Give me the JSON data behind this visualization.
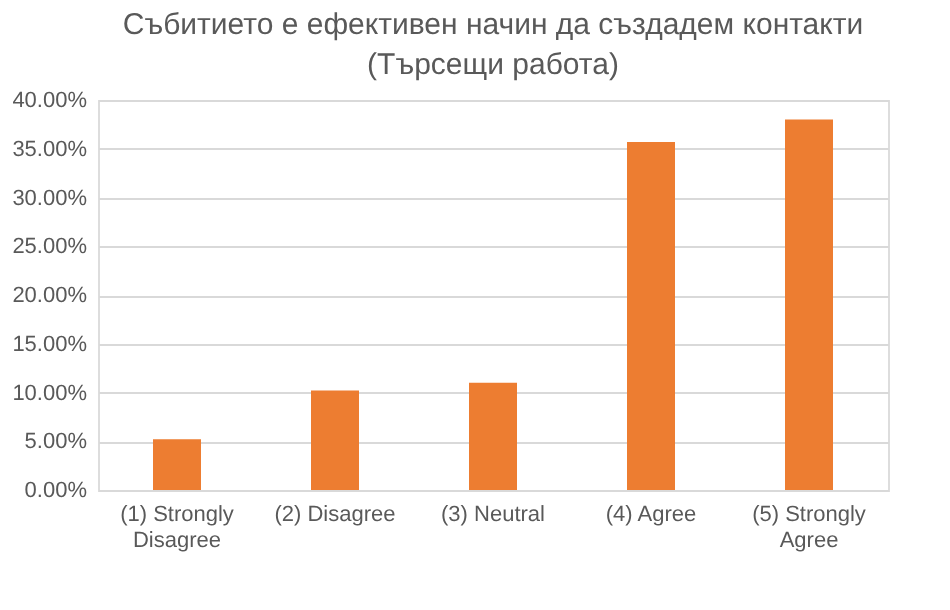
{
  "chart_data": {
    "type": "bar",
    "title": "Събитието е ефективен начин да създадем контакти\n(Търсещи работа)",
    "categories": [
      "(1) Strongly Disagree",
      "(2) Disagree",
      "(3) Neutral",
      "(4) Agree",
      "(5) Strongly Agree"
    ],
    "values": [
      5.2,
      10.2,
      11.0,
      35.7,
      38.0
    ],
    "color": "#ed7d31",
    "ylim": [
      0,
      40
    ],
    "yticks": [
      {
        "value": 0,
        "label": "0.00%"
      },
      {
        "value": 5,
        "label": "5.00%"
      },
      {
        "value": 10,
        "label": "10.00%"
      },
      {
        "value": 15,
        "label": "15.00%"
      },
      {
        "value": 20,
        "label": "20.00%"
      },
      {
        "value": 25,
        "label": "25.00%"
      },
      {
        "value": 30,
        "label": "30.00%"
      },
      {
        "value": 35,
        "label": "35.00%"
      },
      {
        "value": 40,
        "label": "40.00%"
      }
    ],
    "grid": "y"
  }
}
